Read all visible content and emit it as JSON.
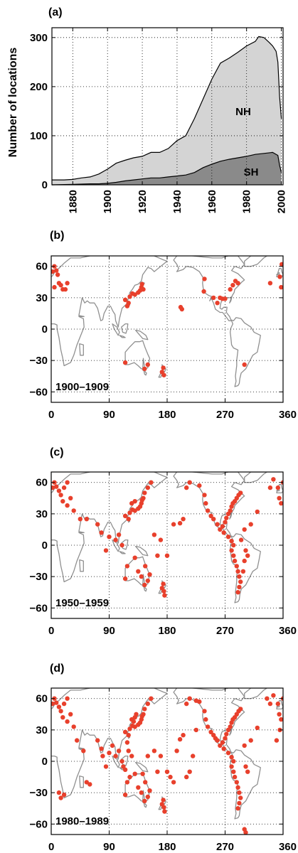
{
  "chart_data": [
    {
      "panel_label": "(a)",
      "type": "area",
      "ylabel": "Number of locations",
      "xlim": [
        1868,
        2001
      ],
      "ylim": [
        0,
        320
      ],
      "xticks": [
        1880,
        1900,
        1920,
        1940,
        1960,
        1980,
        2000
      ],
      "yticks": [
        0,
        100,
        200,
        300
      ],
      "grid": true,
      "colors": {
        "nh_fill": "#d4d4d4",
        "sh_fill": "#8a8a8a",
        "line": "#000000"
      },
      "series": [
        {
          "name": "NH",
          "x": [
            1868,
            1875,
            1880,
            1885,
            1890,
            1895,
            1900,
            1905,
            1910,
            1915,
            1920,
            1925,
            1930,
            1935,
            1940,
            1945,
            1950,
            1955,
            1960,
            1965,
            1970,
            1975,
            1980,
            1985,
            1987,
            1990,
            1993,
            1995,
            1997,
            1998,
            1999,
            2000
          ],
          "y": [
            10,
            10,
            11,
            14,
            16,
            22,
            32,
            44,
            50,
            55,
            58,
            66,
            66,
            74,
            90,
            100,
            135,
            175,
            215,
            248,
            258,
            270,
            283,
            292,
            302,
            300,
            290,
            283,
            272,
            250,
            180,
            135
          ]
        },
        {
          "name": "SH",
          "x": [
            1868,
            1880,
            1890,
            1895,
            1900,
            1905,
            1910,
            1915,
            1920,
            1925,
            1930,
            1935,
            1940,
            1945,
            1950,
            1955,
            1960,
            1965,
            1970,
            1975,
            1980,
            1985,
            1990,
            1995,
            1998,
            1999,
            2000
          ],
          "y": [
            0,
            1,
            2,
            2,
            3,
            5,
            8,
            10,
            12,
            14,
            14,
            16,
            18,
            20,
            25,
            35,
            42,
            48,
            52,
            55,
            58,
            62,
            64,
            66,
            60,
            40,
            25
          ]
        }
      ]
    },
    {
      "panel_label": "(b)",
      "type": "scatter",
      "period": "1900–1909",
      "xlim": [
        0,
        360
      ],
      "ylim": [
        -70,
        70
      ],
      "xticks": [
        0,
        90,
        180,
        270,
        360
      ],
      "yticks": [
        -60,
        -30,
        0,
        30,
        60
      ],
      "marker_color": "#e8402c",
      "points": [
        [
          2,
          55
        ],
        [
          5,
          60
        ],
        [
          8,
          56
        ],
        [
          10,
          52
        ],
        [
          12,
          44
        ],
        [
          15,
          42
        ],
        [
          18,
          38
        ],
        [
          22,
          38
        ],
        [
          25,
          44
        ],
        [
          5,
          40
        ],
        [
          120,
          25
        ],
        [
          122,
          31
        ],
        [
          126,
          34
        ],
        [
          130,
          33
        ],
        [
          135,
          35
        ],
        [
          138,
          37
        ],
        [
          140,
          40
        ],
        [
          141,
          43
        ],
        [
          143,
          38
        ],
        [
          118,
          22
        ],
        [
          115,
          28
        ],
        [
          115,
          -32
        ],
        [
          145,
          -38
        ],
        [
          150,
          -34
        ],
        [
          172,
          -41
        ],
        [
          175,
          -44
        ],
        [
          174,
          -37
        ],
        [
          201,
          21
        ],
        [
          203,
          19
        ],
        [
          238,
          48
        ],
        [
          237,
          36
        ],
        [
          252,
          30
        ],
        [
          258,
          25
        ],
        [
          262,
          30
        ],
        [
          266,
          29
        ],
        [
          270,
          29
        ],
        [
          278,
          38
        ],
        [
          282,
          42
        ],
        [
          286,
          46
        ],
        [
          290,
          44
        ],
        [
          300,
          -34
        ],
        [
          340,
          44
        ],
        [
          355,
          50
        ],
        [
          358,
          62
        ],
        [
          357,
          40
        ]
      ]
    },
    {
      "panel_label": "(c)",
      "type": "scatter",
      "period": "1950–1959",
      "xlim": [
        0,
        360
      ],
      "ylim": [
        -70,
        70
      ],
      "xticks": [
        0,
        90,
        180,
        270,
        360
      ],
      "yticks": [
        -60,
        -30,
        0,
        30,
        60
      ],
      "marker_color": "#e8402c",
      "points": [
        [
          2,
          55
        ],
        [
          5,
          60
        ],
        [
          8,
          56
        ],
        [
          12,
          52
        ],
        [
          15,
          48
        ],
        [
          20,
          55
        ],
        [
          25,
          60
        ],
        [
          18,
          42
        ],
        [
          25,
          38
        ],
        [
          30,
          45
        ],
        [
          35,
          33
        ],
        [
          45,
          25
        ],
        [
          55,
          25
        ],
        [
          72,
          20
        ],
        [
          78,
          12
        ],
        [
          85,
          -5
        ],
        [
          90,
          8
        ],
        [
          100,
          5
        ],
        [
          105,
          10
        ],
        [
          110,
          0
        ],
        [
          115,
          28
        ],
        [
          120,
          25
        ],
        [
          122,
          31
        ],
        [
          126,
          34
        ],
        [
          130,
          33
        ],
        [
          135,
          35
        ],
        [
          138,
          37
        ],
        [
          140,
          40
        ],
        [
          141,
          43
        ],
        [
          143,
          45
        ],
        [
          145,
          50
        ],
        [
          150,
          55
        ],
        [
          155,
          60
        ],
        [
          125,
          40
        ],
        [
          130,
          42
        ],
        [
          115,
          -32
        ],
        [
          118,
          -20
        ],
        [
          130,
          -12
        ],
        [
          135,
          -25
        ],
        [
          145,
          -38
        ],
        [
          150,
          -34
        ],
        [
          153,
          -28
        ],
        [
          146,
          -20
        ],
        [
          140,
          -30
        ],
        [
          172,
          -41
        ],
        [
          175,
          -44
        ],
        [
          174,
          -37
        ],
        [
          176,
          -48
        ],
        [
          160,
          10
        ],
        [
          170,
          5
        ],
        [
          165,
          -10
        ],
        [
          180,
          -10
        ],
        [
          190,
          20
        ],
        [
          200,
          21
        ],
        [
          205,
          25
        ],
        [
          210,
          55
        ],
        [
          215,
          60
        ],
        [
          230,
          57
        ],
        [
          238,
          48
        ],
        [
          240,
          40
        ],
        [
          243,
          33
        ],
        [
          248,
          28
        ],
        [
          252,
          25
        ],
        [
          258,
          20
        ],
        [
          262,
          15
        ],
        [
          266,
          18
        ],
        [
          270,
          22
        ],
        [
          272,
          26
        ],
        [
          275,
          30
        ],
        [
          278,
          33
        ],
        [
          280,
          37
        ],
        [
          282,
          40
        ],
        [
          285,
          42
        ],
        [
          288,
          45
        ],
        [
          291,
          48
        ],
        [
          294,
          50
        ],
        [
          268,
          12
        ],
        [
          275,
          8
        ],
        [
          280,
          4
        ],
        [
          283,
          0
        ],
        [
          280,
          -5
        ],
        [
          283,
          -10
        ],
        [
          285,
          -15
        ],
        [
          288,
          -20
        ],
        [
          290,
          -25
        ],
        [
          292,
          -30
        ],
        [
          294,
          -35
        ],
        [
          292,
          -40
        ],
        [
          290,
          -45
        ],
        [
          298,
          -25
        ],
        [
          300,
          -15
        ],
        [
          305,
          -10
        ],
        [
          302,
          -5
        ],
        [
          295,
          5
        ],
        [
          300,
          15
        ],
        [
          310,
          20
        ],
        [
          320,
          32
        ],
        [
          340,
          55
        ],
        [
          345,
          63
        ],
        [
          352,
          55
        ],
        [
          357,
          40
        ],
        [
          354,
          45
        ],
        [
          360,
          60
        ]
      ]
    },
    {
      "panel_label": "(d)",
      "type": "scatter",
      "period": "1980–1989",
      "xlim": [
        0,
        360
      ],
      "ylim": [
        -70,
        70
      ],
      "xticks": [
        0,
        90,
        180,
        270,
        360
      ],
      "yticks": [
        -60,
        -30,
        0,
        30,
        60
      ],
      "marker_color": "#e8402c",
      "points": [
        [
          2,
          55
        ],
        [
          5,
          60
        ],
        [
          8,
          56
        ],
        [
          12,
          52
        ],
        [
          15,
          48
        ],
        [
          20,
          55
        ],
        [
          25,
          60
        ],
        [
          18,
          42
        ],
        [
          25,
          38
        ],
        [
          30,
          45
        ],
        [
          35,
          33
        ],
        [
          40,
          20
        ],
        [
          50,
          10
        ],
        [
          55,
          -20
        ],
        [
          60,
          -22
        ],
        [
          12,
          -30
        ],
        [
          15,
          -35
        ],
        [
          20,
          -32
        ],
        [
          72,
          20
        ],
        [
          78,
          12
        ],
        [
          80,
          5
        ],
        [
          85,
          -5
        ],
        [
          90,
          8
        ],
        [
          95,
          15
        ],
        [
          100,
          5
        ],
        [
          105,
          10
        ],
        [
          110,
          0
        ],
        [
          112,
          -5
        ],
        [
          115,
          -8
        ],
        [
          115,
          28
        ],
        [
          120,
          25
        ],
        [
          122,
          31
        ],
        [
          126,
          34
        ],
        [
          130,
          33
        ],
        [
          135,
          35
        ],
        [
          138,
          37
        ],
        [
          140,
          40
        ],
        [
          141,
          43
        ],
        [
          143,
          45
        ],
        [
          145,
          50
        ],
        [
          150,
          55
        ],
        [
          155,
          60
        ],
        [
          125,
          40
        ],
        [
          130,
          42
        ],
        [
          132,
          45
        ],
        [
          128,
          38
        ],
        [
          118,
          18
        ],
        [
          120,
          10
        ],
        [
          125,
          5
        ],
        [
          115,
          -32
        ],
        [
          118,
          -20
        ],
        [
          122,
          -15
        ],
        [
          130,
          -12
        ],
        [
          135,
          -25
        ],
        [
          140,
          -30
        ],
        [
          145,
          -38
        ],
        [
          150,
          -34
        ],
        [
          153,
          -28
        ],
        [
          146,
          -20
        ],
        [
          142,
          -12
        ],
        [
          172,
          -41
        ],
        [
          175,
          -44
        ],
        [
          174,
          -37
        ],
        [
          176,
          -48
        ],
        [
          150,
          5
        ],
        [
          160,
          10
        ],
        [
          170,
          5
        ],
        [
          165,
          -10
        ],
        [
          180,
          -10
        ],
        [
          185,
          -15
        ],
        [
          190,
          -20
        ],
        [
          195,
          10
        ],
        [
          200,
          21
        ],
        [
          205,
          25
        ],
        [
          210,
          -15
        ],
        [
          215,
          -10
        ],
        [
          220,
          5
        ],
        [
          225,
          30
        ],
        [
          210,
          55
        ],
        [
          215,
          60
        ],
        [
          225,
          58
        ],
        [
          230,
          57
        ],
        [
          238,
          48
        ],
        [
          240,
          40
        ],
        [
          243,
          33
        ],
        [
          248,
          28
        ],
        [
          252,
          25
        ],
        [
          255,
          22
        ],
        [
          258,
          20
        ],
        [
          262,
          15
        ],
        [
          266,
          18
        ],
        [
          270,
          22
        ],
        [
          272,
          26
        ],
        [
          275,
          30
        ],
        [
          278,
          33
        ],
        [
          280,
          37
        ],
        [
          282,
          40
        ],
        [
          285,
          42
        ],
        [
          288,
          45
        ],
        [
          291,
          48
        ],
        [
          294,
          50
        ],
        [
          268,
          12
        ],
        [
          275,
          8
        ],
        [
          280,
          4
        ],
        [
          283,
          0
        ],
        [
          280,
          -5
        ],
        [
          283,
          -10
        ],
        [
          285,
          -15
        ],
        [
          288,
          -20
        ],
        [
          290,
          -25
        ],
        [
          292,
          -30
        ],
        [
          294,
          -35
        ],
        [
          292,
          -40
        ],
        [
          290,
          -45
        ],
        [
          300,
          -65
        ],
        [
          302,
          -68
        ],
        [
          305,
          -10
        ],
        [
          302,
          -5
        ],
        [
          300,
          15
        ],
        [
          310,
          20
        ],
        [
          320,
          32
        ],
        [
          335,
          60
        ],
        [
          340,
          55
        ],
        [
          345,
          63
        ],
        [
          352,
          55
        ],
        [
          357,
          40
        ],
        [
          354,
          45
        ],
        [
          360,
          60
        ],
        [
          355,
          30
        ],
        [
          350,
          20
        ]
      ]
    }
  ]
}
